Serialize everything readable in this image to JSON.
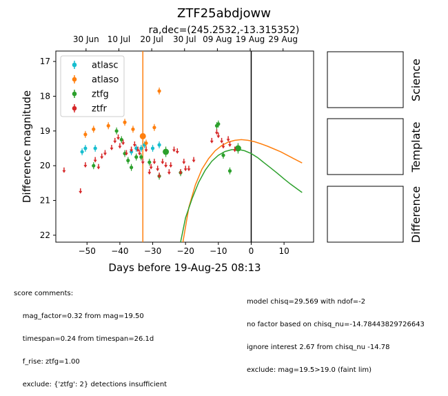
{
  "chart_data": {
    "type": "scatter",
    "title": "ZTF25abdjoww",
    "subtitle": "ra,dec=(245.2532,-13.315352)",
    "xlabel": "Days before 19-Aug-25 08:13",
    "ylabel": "Difference magnitude",
    "xlim": [
      -59.5,
      19
    ],
    "ylim": [
      22.2,
      16.7
    ],
    "xticks": [
      -50,
      -40,
      -30,
      -20,
      -10,
      0,
      10
    ],
    "xtick_labels": [
      "−50",
      "−40",
      "−30",
      "−20",
      "−10",
      "0",
      "10"
    ],
    "yticks": [
      17,
      18,
      19,
      20,
      21,
      22
    ],
    "top_axis_ticks": [
      {
        "x": -50.3,
        "label": "30 Jun"
      },
      {
        "x": -40.3,
        "label": "10 Jul"
      },
      {
        "x": -30.3,
        "label": "20 Jul"
      },
      {
        "x": -20.3,
        "label": "30 Jul"
      },
      {
        "x": -10.3,
        "label": "09 Aug"
      },
      {
        "x": -0.3,
        "label": "19 Aug"
      },
      {
        "x": 9.7,
        "label": "29 Aug"
      }
    ],
    "legend_position": "upper-left",
    "series": [
      {
        "name": "atlasc",
        "color": "#17becf",
        "detections": [
          [
            -51.5,
            19.6,
            0.1
          ],
          [
            -50.5,
            19.5,
            0.1
          ],
          [
            -47.5,
            19.5,
            0.1
          ],
          [
            -36.5,
            19.6,
            0.1
          ],
          [
            -35,
            19.5,
            0.1
          ],
          [
            -33.5,
            19.5,
            0.1
          ],
          [
            -32.5,
            19.4,
            0.1
          ],
          [
            -30,
            19.5,
            0.1
          ],
          [
            -28,
            19.4,
            0.1
          ]
        ],
        "upper_limits": []
      },
      {
        "name": "atlaso",
        "color": "#ff7f0e",
        "detections": [
          [
            -50.5,
            19.1,
            0.1
          ],
          [
            -48,
            18.95,
            0.1
          ],
          [
            -43.5,
            18.85,
            0.1
          ],
          [
            -38.5,
            18.75,
            0.1
          ],
          [
            -36,
            18.95,
            0.1
          ],
          [
            -33,
            19.15,
            0.2
          ],
          [
            -32,
            19.35,
            0.1
          ],
          [
            -29.5,
            18.9,
            0.1
          ],
          [
            -28,
            17.85,
            0.1
          ]
        ],
        "upper_limits": []
      },
      {
        "name": "ztfg",
        "color": "#2ca02c",
        "detections": [
          [
            -48,
            20.0,
            0.1
          ],
          [
            -41,
            19.0,
            0.1
          ],
          [
            -39.5,
            19.25,
            0.1
          ],
          [
            -38.5,
            19.65,
            0.1
          ],
          [
            -37.5,
            19.85,
            0.1
          ],
          [
            -36.5,
            20.05,
            0.1
          ],
          [
            -35,
            19.75,
            0.1
          ],
          [
            -33.5,
            19.75,
            0.1
          ],
          [
            -31,
            19.9,
            0.1
          ],
          [
            -28,
            20.3,
            0.1
          ],
          [
            -26,
            19.6,
            0.15
          ],
          [
            -21.5,
            20.2,
            0.1
          ],
          [
            -10.5,
            18.85,
            0.1
          ],
          [
            -10,
            18.8,
            0.1
          ],
          [
            -8.5,
            19.7,
            0.1
          ],
          [
            -4,
            19.5,
            0.15
          ],
          [
            -6.5,
            20.15,
            0.1
          ]
        ],
        "upper_limits": []
      },
      {
        "name": "ztfr",
        "color": "#d62728",
        "detections": [],
        "upper_limits": [
          [
            -57,
            20.05
          ],
          [
            -52,
            20.65
          ],
          [
            -50.5,
            19.9
          ],
          [
            -47.5,
            19.75
          ],
          [
            -46.5,
            19.95
          ],
          [
            -45.5,
            19.65
          ],
          [
            -44.5,
            19.55
          ],
          [
            -42.5,
            19.4
          ],
          [
            -41.5,
            19.2
          ],
          [
            -40.5,
            19.1
          ],
          [
            -40,
            19.35
          ],
          [
            -39,
            19.25
          ],
          [
            -38,
            19.55
          ],
          [
            -36.5,
            19.45
          ],
          [
            -35.5,
            19.3
          ],
          [
            -34.5,
            19.45
          ],
          [
            -34,
            19.55
          ],
          [
            -33,
            19.8
          ],
          [
            -32,
            19.45
          ],
          [
            -31,
            20.1
          ],
          [
            -30.5,
            19.95
          ],
          [
            -29.5,
            19.8
          ],
          [
            -28.5,
            20.0
          ],
          [
            -28,
            20.2
          ],
          [
            -27,
            19.8
          ],
          [
            -26,
            19.9
          ],
          [
            -25,
            20.1
          ],
          [
            -24.5,
            19.9
          ],
          [
            -23.5,
            19.45
          ],
          [
            -22.5,
            19.5
          ],
          [
            -21.5,
            20.1
          ],
          [
            -20.5,
            19.8
          ],
          [
            -20,
            20.0
          ],
          [
            -19,
            20.0
          ],
          [
            -17.5,
            19.75
          ],
          [
            -12,
            19.2
          ],
          [
            -10.5,
            18.95
          ],
          [
            -10,
            19.05
          ],
          [
            -9,
            19.2
          ],
          [
            -8.5,
            19.35
          ],
          [
            -7,
            19.15
          ],
          [
            -6.5,
            19.3
          ],
          [
            -5,
            19.45
          ]
        ]
      }
    ],
    "vertical_lines": [
      {
        "x": -33,
        "color": "#ff7f0e"
      },
      {
        "x": 0,
        "color": "#000000"
      }
    ],
    "model_curves": [
      {
        "color": "#ff7f0e",
        "points": [
          [
            -20.8,
            22.2
          ],
          [
            -19,
            21.2
          ],
          [
            -17,
            20.55
          ],
          [
            -15,
            20.1
          ],
          [
            -13,
            19.8
          ],
          [
            -11,
            19.57
          ],
          [
            -9,
            19.42
          ],
          [
            -7,
            19.32
          ],
          [
            -5,
            19.27
          ],
          [
            -3,
            19.25
          ],
          [
            -1,
            19.27
          ],
          [
            1,
            19.31
          ],
          [
            3,
            19.37
          ],
          [
            5,
            19.44
          ],
          [
            7,
            19.52
          ],
          [
            9,
            19.6
          ],
          [
            11,
            19.7
          ],
          [
            13,
            19.8
          ],
          [
            15.5,
            19.92
          ]
        ]
      },
      {
        "color": "#2ca02c",
        "points": [
          [
            -21.5,
            22.2
          ],
          [
            -20,
            21.5
          ],
          [
            -18,
            20.95
          ],
          [
            -16,
            20.48
          ],
          [
            -14,
            20.13
          ],
          [
            -12,
            19.87
          ],
          [
            -10,
            19.7
          ],
          [
            -8,
            19.59
          ],
          [
            -6,
            19.54
          ],
          [
            -4,
            19.53
          ],
          [
            -2,
            19.57
          ],
          [
            0,
            19.65
          ],
          [
            2,
            19.77
          ],
          [
            4,
            19.92
          ],
          [
            6,
            20.07
          ],
          [
            8,
            20.22
          ],
          [
            10,
            20.38
          ],
          [
            12,
            20.53
          ],
          [
            14,
            20.67
          ],
          [
            15.5,
            20.77
          ]
        ]
      }
    ],
    "side_panels": [
      "Science",
      "Template",
      "Difference"
    ]
  },
  "comments": {
    "left": [
      "score comments:",
      "    mag_factor=0.32 from mag=19.50",
      "    timespan=0.24 from timespan=26.1d",
      "    f_rise: ztfg=1.00",
      "    exclude: {'ztfg': 2} detections insufficient"
    ],
    "right": [
      "model chisq=29.569 with ndof=-2",
      "no factor based on chisq_nu=-14.78443829726643",
      "ignore interest 2.67 from chisq_nu -14.78",
      "exclude: mag=19.5>19.0 (faint lim)"
    ]
  }
}
